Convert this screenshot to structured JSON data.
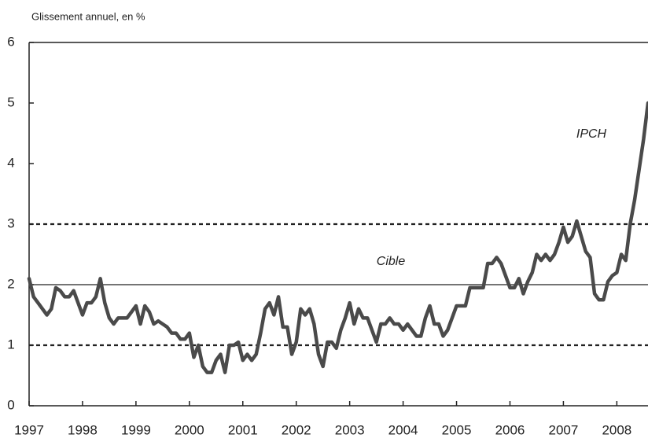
{
  "chart_data": {
    "type": "line",
    "y_axis_label": "Glissement annuel, en %",
    "categories": [
      "1997",
      null,
      null,
      null,
      null,
      null,
      null,
      null,
      null,
      null,
      null,
      null,
      "1998",
      null,
      null,
      null,
      null,
      null,
      null,
      null,
      null,
      null,
      null,
      null,
      "1999",
      null,
      null,
      null,
      null,
      null,
      null,
      null,
      null,
      null,
      null,
      null,
      "2000",
      null,
      null,
      null,
      null,
      null,
      null,
      null,
      null,
      null,
      null,
      null,
      "2001",
      null,
      null,
      null,
      null,
      null,
      null,
      null,
      null,
      null,
      null,
      null,
      "2002",
      null,
      null,
      null,
      null,
      null,
      null,
      null,
      null,
      null,
      null,
      null,
      "2003",
      null,
      null,
      null,
      null,
      null,
      null,
      null,
      null,
      null,
      null,
      null,
      "2004",
      null,
      null,
      null,
      null,
      null,
      null,
      null,
      null,
      null,
      null,
      null,
      "2005",
      null,
      null,
      null,
      null,
      null,
      null,
      null,
      null,
      null,
      null,
      null,
      "2006",
      null,
      null,
      null,
      null,
      null,
      null,
      null,
      null,
      null,
      null,
      null,
      "2007",
      null,
      null,
      null,
      null,
      null,
      null,
      null,
      null,
      null,
      null,
      null,
      "2008",
      null,
      null,
      null,
      null,
      null,
      null,
      null
    ],
    "series": [
      {
        "name": "IPCH",
        "color": "#4a4a4a",
        "values": [
          2.1,
          1.8,
          1.7,
          1.6,
          1.5,
          1.6,
          1.95,
          1.9,
          1.8,
          1.8,
          1.9,
          1.7,
          1.5,
          1.7,
          1.7,
          1.8,
          2.1,
          1.7,
          1.45,
          1.35,
          1.45,
          1.45,
          1.45,
          1.55,
          1.65,
          1.35,
          1.65,
          1.55,
          1.35,
          1.4,
          1.35,
          1.3,
          1.2,
          1.2,
          1.1,
          1.1,
          1.2,
          0.8,
          1.0,
          0.65,
          0.55,
          0.55,
          0.75,
          0.85,
          0.55,
          1.0,
          1.0,
          1.05,
          0.75,
          0.85,
          0.75,
          0.85,
          1.2,
          1.6,
          1.7,
          1.5,
          1.8,
          1.3,
          1.3,
          0.85,
          1.05,
          1.6,
          1.5,
          1.6,
          1.35,
          0.85,
          0.65,
          1.05,
          1.05,
          0.95,
          1.25,
          1.45,
          1.7,
          1.35,
          1.6,
          1.45,
          1.45,
          1.25,
          1.05,
          1.35,
          1.35,
          1.45,
          1.35,
          1.35,
          1.25,
          1.35,
          1.25,
          1.15,
          1.15,
          1.45,
          1.65,
          1.35,
          1.35,
          1.15,
          1.25,
          1.45,
          1.65,
          1.65,
          1.65,
          1.95,
          1.95,
          1.95,
          1.95,
          2.35,
          2.35,
          2.45,
          2.35,
          2.15,
          1.95,
          1.95,
          2.1,
          1.85,
          2.05,
          2.2,
          2.5,
          2.4,
          2.5,
          2.4,
          2.5,
          2.7,
          2.95,
          2.7,
          2.8,
          3.05,
          2.8,
          2.55,
          2.45,
          1.85,
          1.75,
          1.75,
          2.05,
          2.15,
          2.2,
          2.5,
          2.4,
          3.0,
          3.4,
          3.9,
          4.4,
          5.0
        ]
      }
    ],
    "ylim": [
      0,
      6
    ],
    "yticks": [
      0,
      1,
      2,
      3,
      4,
      5,
      6
    ],
    "reference_lines": [
      {
        "value": 1,
        "style": "dashed"
      },
      {
        "value": 2,
        "style": "solid",
        "label": "Cible"
      },
      {
        "value": 3,
        "style": "dashed"
      }
    ]
  }
}
